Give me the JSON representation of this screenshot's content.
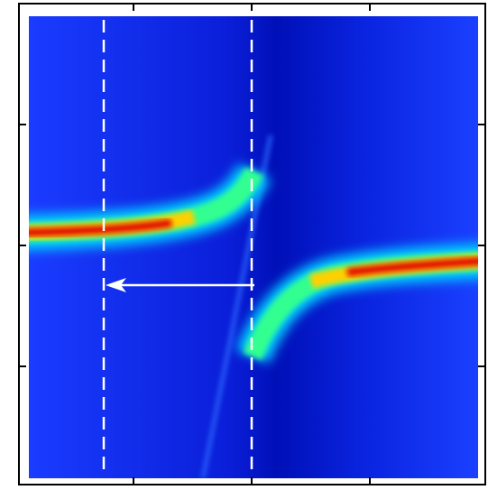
{
  "chart_data": {
    "type": "heatmap"
  }
}
